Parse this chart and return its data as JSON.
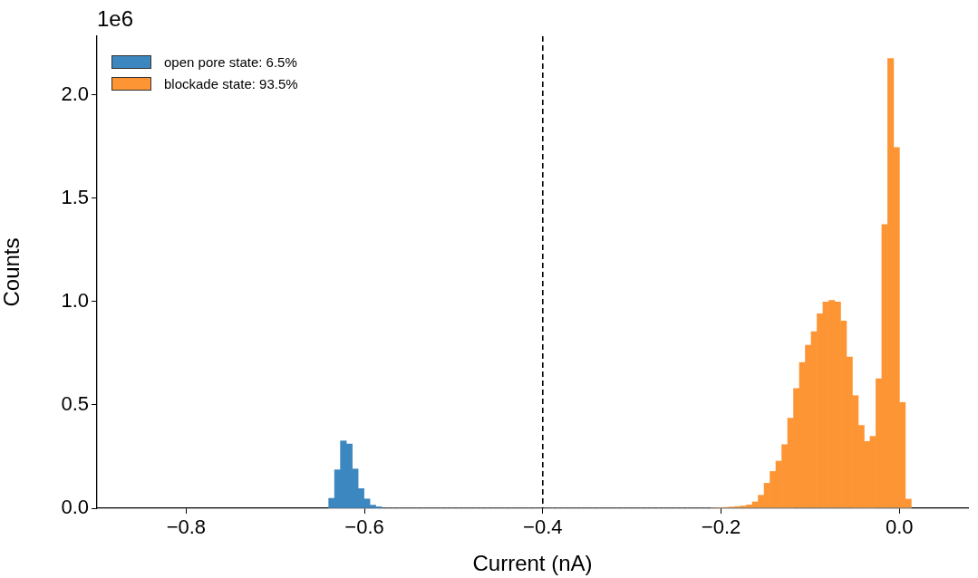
{
  "chart_data": {
    "type": "histogram",
    "xlabel": "Current (nA)",
    "ylabel": "Counts",
    "annotations": [
      "1e6"
    ],
    "xlim": [
      -0.9,
      0.077
    ],
    "ylim": [
      0,
      2.285
    ],
    "xticks": [
      {
        "value": -0.8,
        "label": "−0.8"
      },
      {
        "value": -0.6,
        "label": "−0.6"
      },
      {
        "value": -0.4,
        "label": "−0.4"
      },
      {
        "value": -0.2,
        "label": "−0.2"
      },
      {
        "value": 0,
        "label": "0.0"
      }
    ],
    "yticks": [
      {
        "value": 0,
        "label": "0.0"
      },
      {
        "value": 0.5,
        "label": "0.5"
      },
      {
        "value": 1,
        "label": "1.0"
      },
      {
        "value": 1.5,
        "label": "1.5"
      },
      {
        "value": 2,
        "label": "2.0"
      }
    ],
    "bins": [
      -0.6401,
      -0.6335,
      -0.6269,
      -0.6203,
      -0.6137,
      -0.6071,
      -0.6005,
      -0.5939,
      -0.5873,
      -0.5807,
      -0.5741,
      -0.5675,
      -0.5609,
      -0.5543,
      -0.5477,
      -0.5411,
      -0.5345,
      -0.5279,
      -0.5213,
      -0.5147,
      -0.5081,
      -0.5015,
      -0.4949,
      -0.4883,
      -0.4817,
      -0.4751,
      -0.4685,
      -0.4619,
      -0.4553,
      -0.4487,
      -0.4421,
      -0.4355,
      -0.4289,
      -0.4223,
      -0.4157,
      -0.4091,
      -0.4025,
      -0.3959,
      -0.3893,
      -0.3827,
      -0.3761,
      -0.3695,
      -0.3629,
      -0.3563,
      -0.3497,
      -0.3431,
      -0.3365,
      -0.3299,
      -0.3233,
      -0.3167,
      -0.3101,
      -0.3035,
      -0.2969,
      -0.2903,
      -0.2837,
      -0.2771,
      -0.2705,
      -0.2639,
      -0.2573,
      -0.2507,
      -0.2441,
      -0.2375,
      -0.2309,
      -0.2243,
      -0.2177,
      -0.2111,
      -0.2045,
      -0.1979,
      -0.1913,
      -0.1847,
      -0.1781,
      -0.1715,
      -0.1649,
      -0.1583,
      -0.1517,
      -0.1451,
      -0.1385,
      -0.1319,
      -0.1253,
      -0.1187,
      -0.1121,
      -0.1055,
      -0.0989,
      -0.0923,
      -0.0857,
      -0.0791,
      -0.0725,
      -0.0659,
      -0.0593,
      -0.0527,
      -0.0461,
      -0.0395,
      -0.0329,
      -0.0263,
      -0.0197,
      -0.0131,
      -0.0065,
      0.0001,
      0.0067,
      0.0133
    ],
    "series": [
      {
        "name": "open pore state: 6.5%",
        "color": "#3c87c0",
        "values": [
          0.048,
          0.186,
          0.326,
          0.311,
          0.19,
          0.095,
          0.045,
          0.015,
          0.007,
          0,
          0,
          0,
          0,
          0,
          0,
          0,
          0,
          0,
          0,
          0,
          0,
          0,
          0,
          0,
          0,
          0,
          0,
          0,
          0,
          0,
          0,
          0,
          0,
          0,
          0,
          0,
          0,
          0,
          0,
          0,
          0,
          0,
          0,
          0,
          0,
          0,
          0,
          0,
          0,
          0,
          0,
          0,
          0,
          0,
          0,
          0,
          0,
          0,
          0,
          0,
          0,
          0,
          0,
          0,
          0,
          0,
          0,
          0,
          0,
          0,
          0,
          0,
          0,
          0,
          0,
          0,
          0,
          0,
          0,
          0,
          0,
          0,
          0,
          0,
          0,
          0,
          0,
          0,
          0,
          0,
          0,
          0,
          0,
          0,
          0,
          0,
          0,
          0,
          0
        ]
      },
      {
        "name": "blockade state: 93.5%",
        "color": "#fd9535",
        "values": [
          0,
          0,
          0,
          0,
          0,
          0,
          0,
          0,
          0,
          0,
          0,
          0,
          0,
          0,
          0,
          0,
          0,
          0,
          0,
          0,
          0,
          0,
          0,
          0,
          0,
          0,
          0,
          0,
          0,
          0,
          0,
          0,
          0,
          0,
          0,
          0,
          0,
          0,
          0,
          0,
          0,
          0,
          0,
          0,
          0,
          0,
          0,
          0,
          0,
          0,
          0,
          0,
          0,
          0,
          0,
          0,
          0,
          0,
          0,
          0,
          0,
          0,
          0,
          0,
          0,
          0.002,
          0.003,
          0.004,
          0.006,
          0.008,
          0.011,
          0.016,
          0.031,
          0.063,
          0.121,
          0.178,
          0.228,
          0.308,
          0.436,
          0.58,
          0.706,
          0.789,
          0.855,
          0.942,
          0.999,
          1.006,
          0.999,
          0.906,
          0.732,
          0.545,
          0.401,
          0.323,
          0.348,
          0.627,
          1.373,
          2.177,
          1.746,
          0.512,
          0.044
        ]
      }
    ],
    "ref_lines": [
      {
        "axis": "x",
        "value": -0.4,
        "color": "#000000",
        "line_style": "dashed"
      }
    ],
    "legend": "top left",
    "grid": false
  }
}
